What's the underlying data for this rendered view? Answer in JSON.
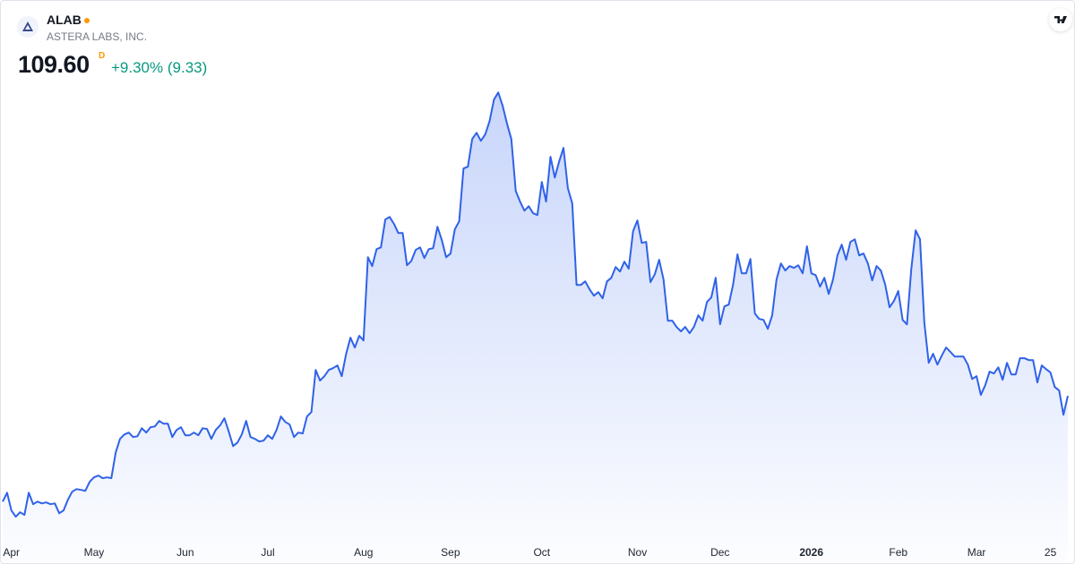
{
  "header": {
    "symbol": "ALAB",
    "company": "ASTERA LABS, INC.",
    "price": "109.60",
    "flag": "D",
    "change": "+9.30% (9.33)"
  },
  "chart_data": {
    "type": "area",
    "color": "#2f62e8",
    "fill_color": "#c2d1fa",
    "xlim": [
      0,
      245
    ],
    "ylim": [
      40,
      270
    ],
    "xticks": [
      {
        "value": 2,
        "label": "Apr"
      },
      {
        "value": 21,
        "label": "May"
      },
      {
        "value": 42,
        "label": "Jun"
      },
      {
        "value": 61,
        "label": "Jul"
      },
      {
        "value": 83,
        "label": "Aug"
      },
      {
        "value": 103,
        "label": "Sep"
      },
      {
        "value": 124,
        "label": "Oct"
      },
      {
        "value": 146,
        "label": "Nov"
      },
      {
        "value": 165,
        "label": "Dec"
      },
      {
        "value": 186,
        "label": "2026"
      },
      {
        "value": 206,
        "label": "Feb"
      },
      {
        "value": 224,
        "label": "Mar"
      },
      {
        "value": 241,
        "label": "25"
      }
    ],
    "bold_ticks": [
      "2026"
    ],
    "values": [
      57.2,
      61.6,
      52.8,
      49.7,
      51.9,
      50.6,
      61.6,
      55.9,
      57.2,
      56.3,
      56.8,
      55.9,
      56.3,
      51.4,
      52.8,
      58.1,
      62.1,
      63.4,
      63.0,
      62.5,
      67.0,
      69.2,
      70.1,
      68.8,
      69.2,
      68.8,
      81.6,
      88.3,
      90.5,
      91.4,
      89.2,
      89.6,
      93.6,
      91.4,
      94.1,
      94.5,
      97.2,
      95.8,
      95.8,
      89.2,
      92.7,
      94.1,
      90.1,
      90.1,
      91.4,
      90.1,
      93.6,
      93.2,
      88.3,
      92.7,
      95.0,
      98.5,
      91.8,
      84.7,
      86.5,
      90.5,
      97.2,
      89.2,
      88.3,
      87.0,
      87.4,
      90.1,
      88.3,
      92.7,
      99.4,
      96.7,
      95.4,
      89.2,
      91.4,
      91.0,
      99.4,
      101.6,
      122.5,
      117.2,
      119.4,
      122.5,
      123.4,
      124.7,
      119.4,
      130.5,
      138.5,
      133.6,
      139.4,
      137.1,
      178.4,
      174.0,
      182.4,
      183.3,
      197.1,
      198.4,
      194.9,
      190.4,
      190.4,
      174.4,
      176.6,
      182.0,
      183.3,
      178.0,
      182.4,
      182.9,
      193.5,
      186.9,
      178.4,
      180.2,
      192.2,
      196.2,
      222.4,
      223.3,
      237.0,
      240.1,
      236.1,
      239.3,
      245.9,
      256.6,
      260.1,
      253.5,
      244.6,
      237.0,
      211.3,
      206.0,
      201.5,
      203.7,
      200.2,
      199.3,
      215.7,
      206.0,
      228.2,
      217.9,
      225.9,
      232.6,
      212.6,
      205.1,
      164.7,
      164.7,
      166.4,
      162.4,
      159.3,
      161.1,
      158.0,
      166.4,
      168.2,
      173.5,
      171.3,
      176.2,
      172.7,
      191.3,
      196.6,
      185.5,
      186.0,
      166.0,
      170.0,
      177.1,
      167.3,
      146.9,
      146.9,
      143.8,
      141.6,
      143.8,
      140.7,
      143.8,
      149.6,
      146.9,
      156.2,
      158.4,
      168.2,
      145.1,
      154.0,
      154.9,
      164.7,
      179.8,
      170.4,
      170.4,
      177.5,
      150.5,
      147.8,
      147.3,
      142.9,
      149.6,
      167.3,
      175.3,
      171.8,
      174.0,
      173.1,
      174.4,
      170.4,
      183.8,
      170.4,
      169.5,
      163.8,
      168.2,
      160.2,
      167.3,
      179.3,
      184.6,
      177.1,
      186.0,
      187.3,
      179.3,
      180.2,
      175.3,
      166.9,
      174.0,
      171.8,
      164.7,
      153.6,
      156.7,
      161.6,
      147.3,
      145.1,
      172.7,
      191.7,
      187.3,
      146.0,
      126.0,
      130.5,
      125.1,
      129.6,
      133.6,
      131.4,
      129.1,
      129.1,
      129.1,
      125.1,
      118.0,
      119.4,
      110.1,
      114.9,
      121.6,
      120.7,
      123.8,
      117.6,
      126.0,
      120.3,
      120.3,
      128.3,
      128.3,
      127.4,
      127.4,
      116.3,
      124.7,
      122.9,
      121.2,
      114.0,
      112.3,
      100.27,
      109.6
    ]
  }
}
